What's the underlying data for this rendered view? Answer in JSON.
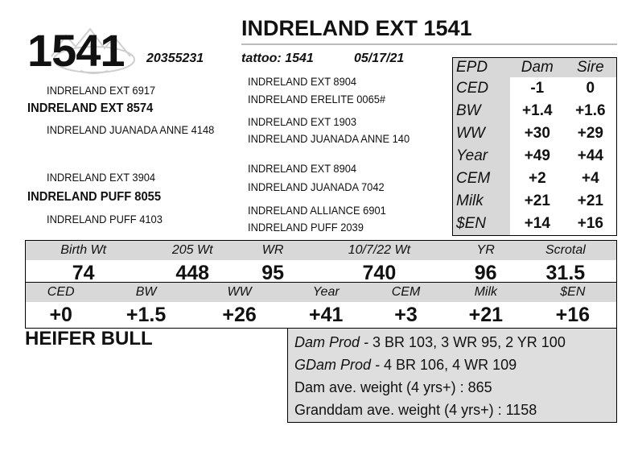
{
  "lot_number": "1541",
  "animal_name": "INDRELAND EXT 1541",
  "registration": "20355231",
  "tattoo": "tattoo: 1541",
  "birth_date": "05/17/21",
  "pedigree": {
    "sire": "INDRELAND EXT 8574",
    "sire_sire": "INDRELAND EXT 6917",
    "sire_dam": "INDRELAND JUANADA ANNE 4148",
    "sire_sire_sire": "INDRELAND EXT 8904",
    "sire_sire_dam": "INDRELAND ERELITE 0065#",
    "sire_dam_sire": "INDRELAND EXT 1903",
    "sire_dam_dam": "INDRELAND JUANADA ANNE 140",
    "dam": "INDRELAND PUFF 8055",
    "dam_sire": "INDRELAND EXT 3904",
    "dam_dam": "INDRELAND PUFF 4103",
    "dam_sire_sire": "INDRELAND EXT 8904",
    "dam_sire_dam": "INDRELAND JUANADA 7042",
    "dam_dam_sire": "INDRELAND ALLIANCE 6901",
    "dam_dam_dam": "INDRELAND PUFF 2039"
  },
  "parent_epd": {
    "headers": [
      "EPD",
      "Dam",
      "Sire"
    ],
    "rows": [
      {
        "trait": "CED",
        "dam": "-1",
        "sire": "0"
      },
      {
        "trait": "BW",
        "dam": "+1.4",
        "sire": "+1.6"
      },
      {
        "trait": "WW",
        "dam": "+30",
        "sire": "+29"
      },
      {
        "trait": "Year",
        "dam": "+49",
        "sire": "+44"
      },
      {
        "trait": "CEM",
        "dam": "+2",
        "sire": "+4"
      },
      {
        "trait": "Milk",
        "dam": "+21",
        "sire": "+21"
      },
      {
        "trait": "$EN",
        "dam": "+14",
        "sire": "+16"
      }
    ]
  },
  "performance": {
    "headers": [
      "Birth Wt",
      "205 Wt",
      "WR",
      "10/7/22 Wt",
      "YR",
      "Scrotal"
    ],
    "values": [
      "74",
      "448",
      "95",
      "740",
      "96",
      "31.5"
    ]
  },
  "calf_epd": {
    "headers": [
      "CED",
      "BW",
      "WW",
      "Year",
      "CEM",
      "Milk",
      "$EN"
    ],
    "values": [
      "+0",
      "+1.5",
      "+26",
      "+41",
      "+3",
      "+21",
      "+16"
    ]
  },
  "class_label": "HEIFER BULL",
  "production": {
    "dam_prod_label": "Dam Prod - ",
    "dam_prod": "3 BR 103, 3 WR 95, 2 YR 100",
    "gdam_prod_label": "GDam Prod - ",
    "gdam_prod": "4 BR 106, 4 WR 109",
    "dam_ave": "Dam ave. weight (4 yrs+) : 865",
    "granddam_ave": "Granddam ave. weight (4 yrs+) : 1158"
  }
}
